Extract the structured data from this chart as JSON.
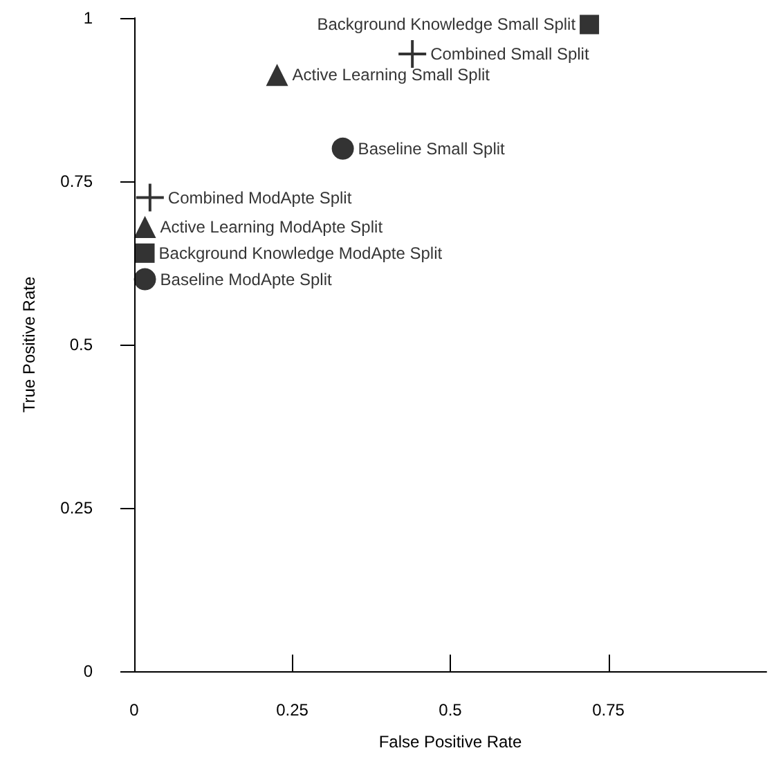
{
  "chart_data": {
    "type": "scatter",
    "xlabel": "False Positive Rate",
    "ylabel": "True Positive Rate",
    "xlim": [
      0,
      1
    ],
    "ylim": [
      0,
      1
    ],
    "xticks": [
      0,
      0.25,
      0.5,
      0.75
    ],
    "yticks": [
      0,
      0.25,
      0.5,
      0.75,
      1
    ],
    "grid": false,
    "legend": false,
    "series": [
      {
        "name": "Background Knowledge Small Split",
        "color": "#000000",
        "marker": "square",
        "x": [
          0.72
        ],
        "values": [
          0.99
        ]
      },
      {
        "name": "Combined Small Split",
        "color": "#000000",
        "marker": "cross",
        "x": [
          0.44
        ],
        "values": [
          0.945
        ]
      },
      {
        "name": "Active Learning Small Split",
        "color": "#000000",
        "marker": "triangle",
        "x": [
          0.226
        ],
        "values": [
          0.913
        ]
      },
      {
        "name": "Baseline Small Split",
        "color": "#000000",
        "marker": "circle",
        "x": [
          0.33
        ],
        "values": [
          0.8
        ]
      },
      {
        "name": "Combined ModApte Split",
        "color": "#000000",
        "marker": "cross",
        "x": [
          0.025
        ],
        "values": [
          0.725
        ]
      },
      {
        "name": "Active Learning ModApte Split",
        "color": "#000000",
        "marker": "triangle",
        "x": [
          0.017
        ],
        "values": [
          0.68
        ]
      },
      {
        "name": "Background Knowledge ModApte Split",
        "color": "#000000",
        "marker": "square",
        "x": [
          0.017
        ],
        "values": [
          0.64
        ]
      },
      {
        "name": "Baseline ModApte Split",
        "color": "#000000",
        "marker": "circle",
        "x": [
          0.017
        ],
        "values": [
          0.6
        ]
      }
    ]
  }
}
